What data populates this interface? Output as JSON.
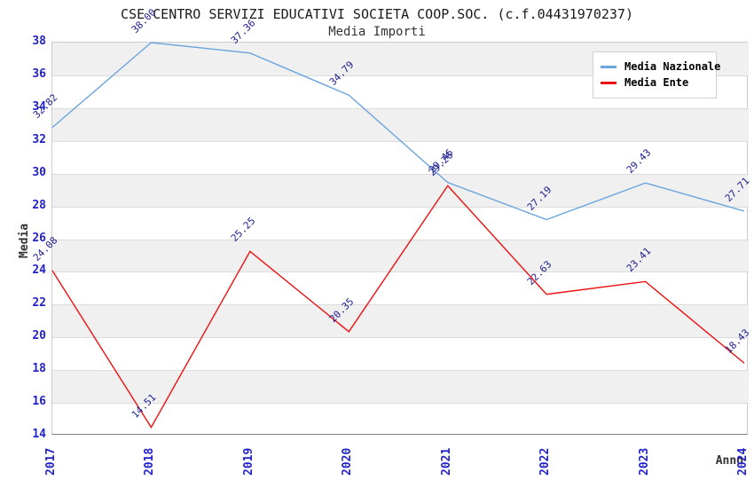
{
  "title": "CSE CENTRO SERVIZI EDUCATIVI SOCIETA COOP.SOC. (c.f.04431970237)",
  "subtitle": "Media Importi",
  "ylabel": "Media",
  "xlabel": "Anno",
  "colors": {
    "media_nazionale": "#6CA5DE",
    "media_ente": "#EE1111",
    "tick_labels": "#2222cc",
    "value_labels": "#1c1c8f",
    "band_fill": "#f0f0f0"
  },
  "chart_data": {
    "type": "line",
    "x": [
      "2017",
      "2018",
      "2019",
      "2020",
      "2021",
      "2022",
      "2023",
      "2024"
    ],
    "series": [
      {
        "name": "Media Nazionale",
        "color": "#6CA5DE",
        "values": [
          32.82,
          38.0,
          37.36,
          34.79,
          29.46,
          27.19,
          29.43,
          27.71
        ]
      },
      {
        "name": "Media Ente",
        "color": "#EE1111",
        "values": [
          24.08,
          14.51,
          25.25,
          20.35,
          29.26,
          22.63,
          23.41,
          18.43
        ]
      }
    ],
    "ylim": [
      14,
      38
    ],
    "ytick_step": 2,
    "grid": "horizontal-banded",
    "legend_position": "top-right",
    "value_label_format": "2-decimals",
    "value_label_rotation": -45,
    "xtick_rotation": -90
  }
}
